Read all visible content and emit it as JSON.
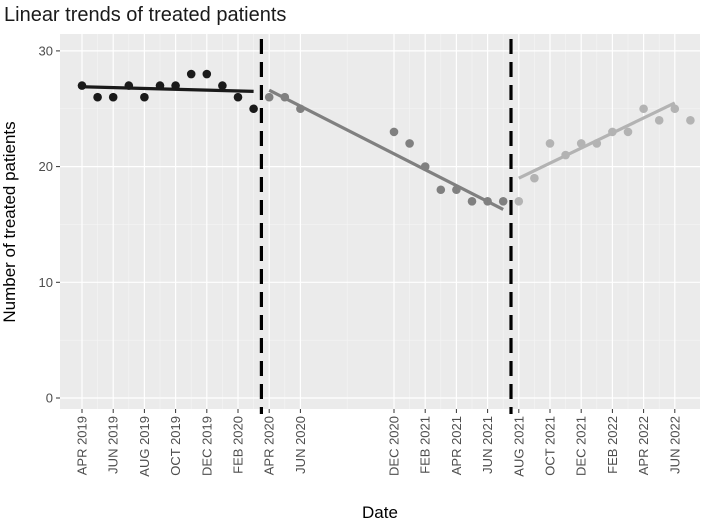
{
  "chart_data": {
    "type": "scatter",
    "title": "Linear trends of treated patients",
    "xlabel": "Date",
    "ylabel": "Number of treated patients",
    "ylim": [
      0,
      30
    ],
    "y_ticks": [
      0,
      10,
      20,
      30
    ],
    "x_tick_labels": [
      "APR 2019",
      "JUN 2019",
      "AUG 2019",
      "OCT 2019",
      "DEC 2019",
      "FEB 2020",
      "APR 2020",
      "JUN 2020",
      "DEC 2020",
      "FEB 2021",
      "APR 2021",
      "JUN 2021",
      "AUG 2021",
      "OCT 2021",
      "DEC 2021",
      "FEB 2022",
      "APR 2022",
      "JUN 2022"
    ],
    "grid": true,
    "vlines": [
      "2020-03",
      "2021-07"
    ],
    "series": [
      {
        "color": "#1a1a1a",
        "points": [
          {
            "x": "2019-04",
            "y": 27
          },
          {
            "x": "2019-05",
            "y": 26
          },
          {
            "x": "2019-06",
            "y": 26
          },
          {
            "x": "2019-07",
            "y": 27
          },
          {
            "x": "2019-08",
            "y": 26
          },
          {
            "x": "2019-09",
            "y": 27
          },
          {
            "x": "2019-10",
            "y": 27
          },
          {
            "x": "2019-11",
            "y": 28
          },
          {
            "x": "2019-12",
            "y": 28
          },
          {
            "x": "2020-01",
            "y": 27
          },
          {
            "x": "2020-02",
            "y": 26
          },
          {
            "x": "2020-03",
            "y": 25
          }
        ],
        "trend": [
          {
            "x": "2019-04",
            "y": 26.9
          },
          {
            "x": "2020-03",
            "y": 26.5
          }
        ]
      },
      {
        "color": "#808080",
        "points": [
          {
            "x": "2020-04",
            "y": 26
          },
          {
            "x": "2020-05",
            "y": 26
          },
          {
            "x": "2020-06",
            "y": 25
          },
          {
            "x": "2020-12",
            "y": 23
          },
          {
            "x": "2021-01",
            "y": 22
          },
          {
            "x": "2021-02",
            "y": 20
          },
          {
            "x": "2021-03",
            "y": 18
          },
          {
            "x": "2021-04",
            "y": 18
          },
          {
            "x": "2021-05",
            "y": 17
          },
          {
            "x": "2021-06",
            "y": 17
          },
          {
            "x": "2021-07",
            "y": 17
          }
        ],
        "trend": [
          {
            "x": "2020-04",
            "y": 26.6
          },
          {
            "x": "2021-07",
            "y": 16.3
          }
        ]
      },
      {
        "color": "#b3b3b3",
        "points": [
          {
            "x": "2021-08",
            "y": 17
          },
          {
            "x": "2021-09",
            "y": 19
          },
          {
            "x": "2021-10",
            "y": 22
          },
          {
            "x": "2021-11",
            "y": 21
          },
          {
            "x": "2021-12",
            "y": 22
          },
          {
            "x": "2022-01",
            "y": 22
          },
          {
            "x": "2022-02",
            "y": 23
          },
          {
            "x": "2022-03",
            "y": 23
          },
          {
            "x": "2022-04",
            "y": 25
          },
          {
            "x": "2022-05",
            "y": 24
          },
          {
            "x": "2022-06",
            "y": 25
          },
          {
            "x": "2022-07",
            "y": 24
          }
        ],
        "trend": [
          {
            "x": "2021-08",
            "y": 19
          },
          {
            "x": "2022-06",
            "y": 25.5
          }
        ]
      }
    ]
  }
}
